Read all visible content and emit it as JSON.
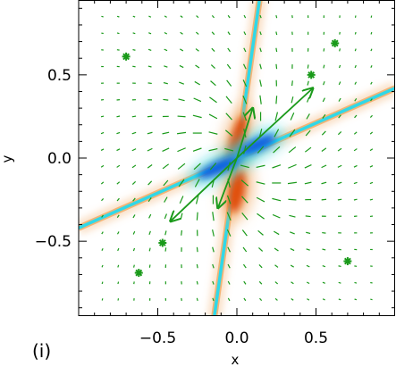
{
  "panel_label": "(i)",
  "colors": {
    "arrows": "#1a9a1a",
    "negative_core": "#1060e0",
    "negative_edge": "#30d8e8",
    "positive_core": "#e05010",
    "positive_edge": "#f0a860",
    "frame": "#000000"
  },
  "chart_data": {
    "type": "vector-field-over-heatmap",
    "title": "",
    "xlabel": "x",
    "ylabel": "y",
    "xlim": [
      -1.0,
      1.0
    ],
    "ylim": [
      -0.95,
      0.95
    ],
    "grid": false,
    "x_ticks": [
      {
        "value": -0.5,
        "label": "−0.5"
      },
      {
        "value": 0.0,
        "label": "0.0"
      },
      {
        "value": 0.5,
        "label": "0.5"
      }
    ],
    "y_ticks": [
      {
        "value": 0.5,
        "label": "0.5"
      },
      {
        "value": 0.0,
        "label": "0.0"
      },
      {
        "value": -0.5,
        "label": "−0.5"
      }
    ],
    "heatmap": {
      "colormap": "blue (negative) – white – red (positive)",
      "blobs": [
        {
          "x": 0.0,
          "y": 0.1,
          "sign": "positive",
          "rx": 0.045,
          "ry": 0.16,
          "angle_deg": 75
        },
        {
          "x": 0.0,
          "y": -0.2,
          "sign": "positive",
          "rx": 0.05,
          "ry": 0.13,
          "angle_deg": 80
        },
        {
          "x": -0.1,
          "y": -0.05,
          "sign": "negative",
          "rx": 0.04,
          "ry": 0.15,
          "angle_deg": 25
        },
        {
          "x": 0.13,
          "y": 0.08,
          "sign": "negative",
          "rx": 0.04,
          "ry": 0.12,
          "angle_deg": 25
        }
      ],
      "filaments": [
        {
          "from": [
            -1.0,
            -0.42
          ],
          "to": [
            1.0,
            0.42
          ],
          "sign": "negative"
        },
        {
          "from": [
            -0.15,
            -1.0
          ],
          "to": [
            0.15,
            1.0
          ],
          "sign": "negative"
        }
      ]
    },
    "vector_field": {
      "grid_x": [
        -0.85,
        -0.75,
        -0.65,
        -0.55,
        -0.45,
        -0.35,
        -0.25,
        -0.15,
        -0.05,
        0.05,
        0.15,
        0.25,
        0.35,
        0.45,
        0.55,
        0.65,
        0.75,
        0.85
      ],
      "grid_y": [
        0.85,
        0.75,
        0.65,
        0.55,
        0.45,
        0.35,
        0.25,
        0.15,
        0.05,
        -0.05,
        -0.15,
        -0.25,
        -0.35,
        -0.45,
        -0.55,
        -0.65,
        -0.75,
        -0.85
      ],
      "large_vectors": [
        {
          "x": 0.0,
          "y": 0.0,
          "dx": 0.48,
          "dy": 0.42
        },
        {
          "x": 0.0,
          "y": 0.0,
          "dx": -0.42,
          "dy": -0.38
        },
        {
          "x": 0.0,
          "y": 0.0,
          "dx": 0.1,
          "dy": 0.3
        },
        {
          "x": 0.0,
          "y": 0.0,
          "dx": -0.12,
          "dy": -0.3
        }
      ]
    },
    "star_markers": [
      {
        "x": -0.7,
        "y": 0.61
      },
      {
        "x": 0.62,
        "y": 0.69
      },
      {
        "x": 0.47,
        "y": 0.5
      },
      {
        "x": -0.47,
        "y": -0.51
      },
      {
        "x": -0.62,
        "y": -0.69
      },
      {
        "x": 0.7,
        "y": -0.62
      }
    ]
  }
}
